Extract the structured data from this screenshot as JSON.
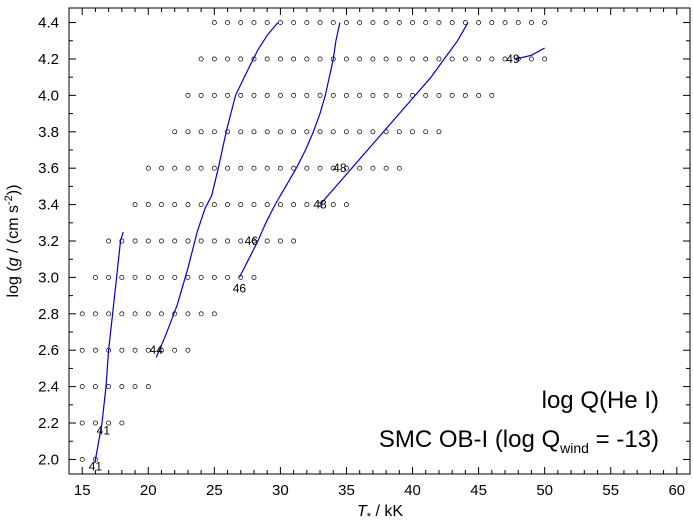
{
  "chart_data": {
    "type": "line",
    "title": "",
    "xlabel": "T_* / kK",
    "ylabel": "log (g / (cm s^-2))",
    "xlim": [
      14,
      61
    ],
    "ylim": [
      1.92,
      4.48
    ],
    "xticks": [
      15,
      20,
      25,
      30,
      35,
      40,
      45,
      50,
      55,
      60
    ],
    "yticks": [
      "2.0",
      "2.2",
      "2.4",
      "2.6",
      "2.8",
      "3.0",
      "3.2",
      "3.4",
      "3.6",
      "3.8",
      "4.0",
      "4.2",
      "4.4"
    ],
    "grid": false,
    "line_color": "#0000cc",
    "annotations": {
      "line1": "log Q(He I)",
      "line2_prefix": "SMC OB-I (log Q",
      "line2_sub": "wind",
      "line2_suffix": " = -13)"
    },
    "model_grid": [
      {
        "logg": 4.4,
        "teff": [
          25,
          26,
          27,
          28,
          29,
          30,
          31,
          32,
          33,
          34,
          35,
          36,
          37,
          38,
          39,
          40,
          41,
          42,
          43,
          44,
          45,
          46,
          47,
          48,
          49,
          50
        ]
      },
      {
        "logg": 4.2,
        "teff": [
          24,
          25,
          26,
          27,
          28,
          29,
          30,
          31,
          32,
          33,
          34,
          35,
          36,
          37,
          38,
          39,
          40,
          41,
          42,
          43,
          44,
          45,
          46,
          47,
          48,
          49,
          50
        ]
      },
      {
        "logg": 4.0,
        "teff": [
          23,
          24,
          25,
          26,
          27,
          28,
          29,
          30,
          31,
          32,
          33,
          34,
          35,
          36,
          37,
          38,
          39,
          40,
          41,
          42,
          43,
          44,
          45,
          46
        ]
      },
      {
        "logg": 3.8,
        "teff": [
          22,
          23,
          24,
          25,
          26,
          27,
          28,
          29,
          30,
          31,
          32,
          33,
          34,
          35,
          36,
          37,
          38,
          39,
          40,
          41,
          42
        ]
      },
      {
        "logg": 3.6,
        "teff": [
          20,
          21,
          22,
          23,
          24,
          25,
          26,
          27,
          28,
          29,
          30,
          31,
          32,
          33,
          34,
          35,
          36,
          37,
          38,
          39
        ]
      },
      {
        "logg": 3.4,
        "teff": [
          19,
          20,
          21,
          22,
          23,
          24,
          25,
          26,
          27,
          28,
          29,
          30,
          31,
          32,
          33,
          34,
          35
        ]
      },
      {
        "logg": 3.2,
        "teff": [
          17,
          18,
          19,
          20,
          21,
          22,
          23,
          24,
          25,
          26,
          27,
          28,
          29,
          30,
          31
        ]
      },
      {
        "logg": 3.0,
        "teff": [
          16,
          17,
          18,
          19,
          20,
          21,
          22,
          23,
          24,
          25,
          26,
          27,
          28
        ]
      },
      {
        "logg": 2.8,
        "teff": [
          15,
          16,
          17,
          18,
          19,
          20,
          21,
          22,
          23,
          24,
          25
        ]
      },
      {
        "logg": 2.6,
        "teff": [
          15,
          16,
          17,
          18,
          19,
          20,
          21,
          22,
          23
        ]
      },
      {
        "logg": 2.4,
        "teff": [
          15,
          16,
          17,
          18,
          19,
          20
        ]
      },
      {
        "logg": 2.2,
        "teff": [
          15,
          16,
          17,
          18
        ]
      },
      {
        "logg": 2.0,
        "teff": [
          15,
          16
        ]
      }
    ],
    "series": [
      {
        "label": "41",
        "label_at": [
          16.0,
          1.96
        ],
        "points": [
          [
            15.95,
            1.98
          ],
          [
            16.2,
            2.08
          ],
          [
            16.5,
            2.2
          ],
          [
            16.8,
            2.4
          ],
          [
            17.0,
            2.6
          ],
          [
            17.3,
            2.8
          ],
          [
            17.6,
            3.0
          ],
          [
            17.9,
            3.2
          ],
          [
            18.1,
            3.25
          ]
        ]
      },
      {
        "label": "41",
        "label_at": [
          16.6,
          2.16
        ],
        "points": []
      },
      {
        "label": "44",
        "label_at": [
          20.6,
          2.6
        ],
        "points": [
          [
            20.6,
            2.56
          ],
          [
            21.3,
            2.68
          ],
          [
            22.2,
            2.85
          ],
          [
            23.0,
            3.05
          ],
          [
            23.7,
            3.25
          ],
          [
            24.3,
            3.38
          ],
          [
            24.8,
            3.45
          ],
          [
            25.3,
            3.6
          ],
          [
            25.9,
            3.8
          ],
          [
            26.6,
            4.0
          ],
          [
            27.6,
            4.15
          ],
          [
            28.3,
            4.25
          ],
          [
            29.0,
            4.33
          ],
          [
            29.8,
            4.4
          ]
        ]
      },
      {
        "label": "46",
        "label_at": [
          26.9,
          2.94
        ],
        "points": [
          [
            26.9,
            3.0
          ],
          [
            27.6,
            3.1
          ],
          [
            28.3,
            3.2
          ],
          [
            28.9,
            3.3
          ],
          [
            29.6,
            3.4
          ],
          [
            30.4,
            3.5
          ],
          [
            31.2,
            3.6
          ],
          [
            31.9,
            3.7
          ],
          [
            32.5,
            3.8
          ],
          [
            33.0,
            3.9
          ],
          [
            33.4,
            4.0
          ],
          [
            33.7,
            4.1
          ],
          [
            34.0,
            4.2
          ],
          [
            34.2,
            4.3
          ],
          [
            34.5,
            4.4
          ]
        ]
      },
      {
        "label": "46",
        "label_at": [
          27.8,
          3.2
        ],
        "points": []
      },
      {
        "label": "48",
        "label_at": [
          33.0,
          3.4
        ],
        "points": [
          [
            33.0,
            3.4
          ],
          [
            34.2,
            3.5
          ],
          [
            35.4,
            3.6
          ],
          [
            36.6,
            3.7
          ],
          [
            37.8,
            3.8
          ],
          [
            39.0,
            3.9
          ],
          [
            40.2,
            4.0
          ],
          [
            41.4,
            4.1
          ],
          [
            42.4,
            4.2
          ],
          [
            43.4,
            4.3
          ],
          [
            44.2,
            4.4
          ]
        ]
      },
      {
        "label": "48",
        "label_at": [
          34.5,
          3.6
        ],
        "points": []
      },
      {
        "label": "49",
        "label_at": [
          47.6,
          4.2
        ],
        "points": [
          [
            47.8,
            4.2
          ],
          [
            49.0,
            4.22
          ],
          [
            50.0,
            4.26
          ]
        ]
      }
    ]
  }
}
